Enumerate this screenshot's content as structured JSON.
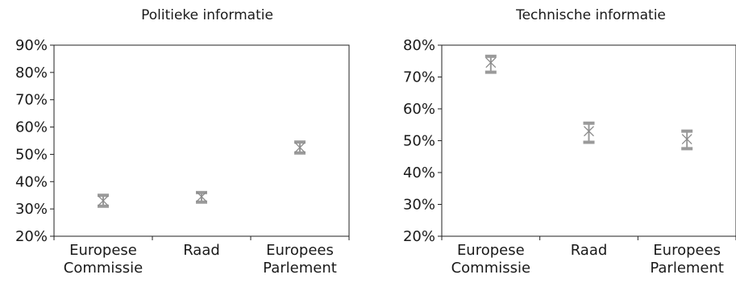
{
  "chart_data": [
    {
      "type": "scatter",
      "title": "Politieke informatie",
      "categories": [
        [
          "Europese",
          "Commissie"
        ],
        [
          "Raad"
        ],
        [
          "Europees",
          "Parlement"
        ]
      ],
      "ytick_labels": [
        "20%",
        "30%",
        "40%",
        "50%",
        "60%",
        "70%",
        "80%",
        "90%"
      ],
      "ylim": [
        20,
        90
      ],
      "values": [
        33,
        34.5,
        52.5
      ],
      "lower": [
        31,
        32.5,
        50.5
      ],
      "upper": [
        35,
        36,
        54.5
      ],
      "grid": false,
      "colors": {
        "marker": "#8a8a8a",
        "errorbar": "#9a9a9a",
        "axis": "#222222"
      }
    },
    {
      "type": "scatter",
      "title": "Technische informatie",
      "categories": [
        [
          "Europese",
          "Commissie"
        ],
        [
          "Raad"
        ],
        [
          "Europees",
          "Parlement"
        ]
      ],
      "ytick_labels": [
        "20%",
        "30%",
        "40%",
        "50%",
        "60%",
        "70%",
        "80%"
      ],
      "ylim": [
        20,
        80
      ],
      "values": [
        74.5,
        53,
        50.5
      ],
      "lower": [
        71.5,
        49.5,
        47.5
      ],
      "upper": [
        76.5,
        55.5,
        53
      ],
      "grid": false,
      "colors": {
        "marker": "#8a8a8a",
        "errorbar": "#9a9a9a",
        "axis": "#222222"
      }
    }
  ]
}
